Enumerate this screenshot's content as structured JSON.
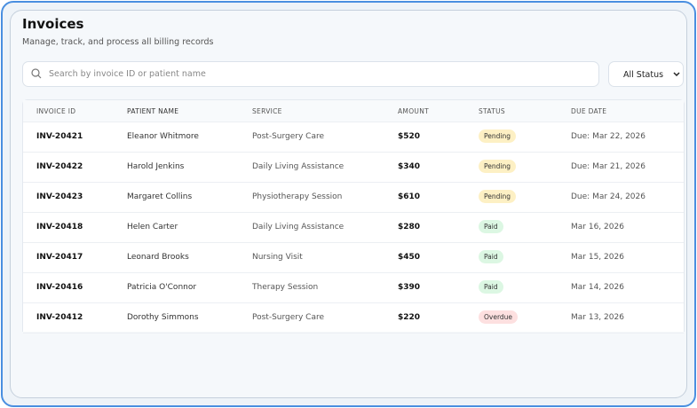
{
  "header": {
    "title": "Invoices",
    "subtitle": "Manage, track, and process all billing records"
  },
  "search": {
    "placeholder": "Search by invoice ID or patient name"
  },
  "filter": {
    "label": "All Status"
  },
  "table": {
    "columns": [
      "INVOICE ID",
      "PATIENT NAME",
      "SERVICE",
      "AMOUNT",
      "STATUS",
      "DUE DATE"
    ],
    "rows": [
      [
        "INV-20421",
        "Eleanor Whitmore",
        "Post-Surgery Care",
        "$520",
        "Pending",
        "Due: Mar 22, 2026"
      ],
      [
        "INV-20422",
        "Harold Jenkins",
        "Daily Living Assistance",
        "$340",
        "Pending",
        "Due: Mar 21, 2026"
      ],
      [
        "INV-20423",
        "Margaret Collins",
        "Physiotherapy Session",
        "$610",
        "Pending",
        "Due: Mar 24, 2026"
      ],
      [
        "INV-20418",
        "Helen Carter",
        "Daily Living Assistance",
        "$280",
        "Paid",
        "Mar 16, 2026"
      ],
      [
        "INV-20417",
        "Leonard Brooks",
        "Nursing Visit",
        "$450",
        "Paid",
        "Mar 15, 2026"
      ],
      [
        "INV-20416",
        "Patricia O'Connor",
        "Therapy Session",
        "$390",
        "Paid",
        "Mar 14, 2026"
      ],
      [
        "INV-20412",
        "Dorothy Simmons",
        "Post-Surgery Care",
        "$220",
        "Overdue",
        "Mar 13, 2026"
      ]
    ]
  }
}
